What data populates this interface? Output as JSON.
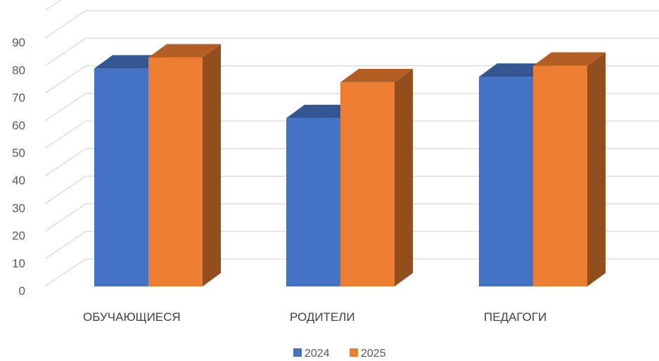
{
  "chart_data": {
    "type": "bar",
    "categories": [
      "ОБУЧАЮЩИЕСЯ",
      "РОДИТЕЛИ",
      "ПЕДАГОГИ"
    ],
    "series": [
      {
        "name": "2024",
        "values": [
          79,
          61,
          76
        ],
        "color": "#4472C4"
      },
      {
        "name": "2025",
        "values": [
          83,
          74,
          80
        ],
        "color": "#ED7D31"
      }
    ],
    "yticks": [
      "0",
      "10",
      "20",
      "30",
      "40",
      "50",
      "60",
      "70",
      "80",
      "90"
    ],
    "ylim": [
      0,
      100
    ],
    "grid": true,
    "legend": "bottom"
  }
}
